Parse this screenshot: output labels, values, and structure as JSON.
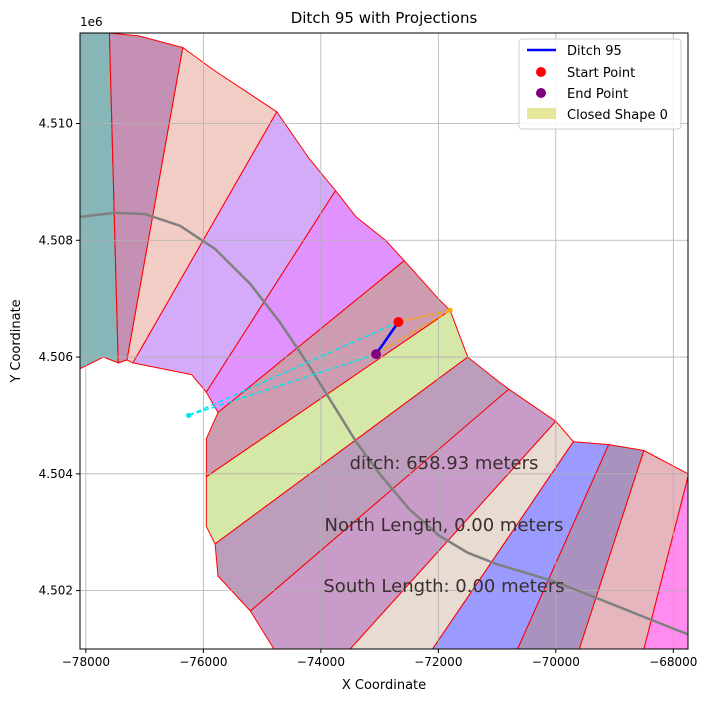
{
  "chart_data": {
    "type": "line",
    "title": "Ditch 95 with Projections",
    "xlabel": "X Coordinate",
    "ylabel": "Y Coordinate",
    "y_offset_label": "1e6",
    "xlim": [
      -78100,
      -67750
    ],
    "ylim": [
      4501.0,
      4511.55
    ],
    "y_scale_note": "y values in thousands of meters (x1e6 offset shown as 1e6 in millions: 4.510 = 4510000)",
    "grid": true,
    "legend_position": "top-right",
    "xticks": [
      -78000,
      -76000,
      -74000,
      -72000,
      -70000,
      -68000
    ],
    "xtick_labels": [
      "−78000",
      "−76000",
      "−74000",
      "−72000",
      "−70000",
      "−68000"
    ],
    "yticks": [
      4502,
      4504,
      4506,
      4508,
      4510
    ],
    "ytick_labels": [
      "4.502",
      "4.504",
      "4.506",
      "4.508",
      "4.510"
    ],
    "legend": [
      {
        "label": "Ditch 95",
        "kind": "line",
        "color": "#0000ff"
      },
      {
        "label": "Start Point",
        "kind": "point",
        "color": "#ff0000"
      },
      {
        "label": "End Point",
        "kind": "point",
        "color": "#800080"
      },
      {
        "label": "Closed Shape 0",
        "kind": "patch",
        "color": "#e3e38a"
      }
    ],
    "annotations": [
      {
        "text": "ditch: 658.93 meters",
        "x": -72500,
        "y": 4504.2
      },
      {
        "text": "North Length, 0.00 meters",
        "x": -72000,
        "y": 4503.15
      },
      {
        "text": "South Length: 0.00 meters",
        "x": -72000,
        "y": 4502.1
      }
    ],
    "ditch": {
      "name": "Ditch 95",
      "x": [
        -72680,
        -73060
      ],
      "y": [
        4506.6,
        4506.05
      ],
      "color": "#0000ff"
    },
    "start_point": {
      "x": -72680,
      "y": 4506.6,
      "color": "#ff0000"
    },
    "end_point": {
      "x": -73060,
      "y": 4506.05,
      "color": "#800080"
    },
    "projections": [
      {
        "color": "#ffa500",
        "x": [
          -72680,
          -71800
        ],
        "y": [
          4506.6,
          4506.8
        ]
      },
      {
        "color": "#ffa500",
        "x": [
          -73060,
          -71800
        ],
        "y": [
          4506.05,
          4506.8
        ]
      },
      {
        "color": "#00e5ee",
        "x": [
          -72680,
          -76250
        ],
        "y": [
          4506.6,
          4505.0
        ]
      },
      {
        "color": "#00e5ee",
        "x": [
          -73060,
          -76250
        ],
        "y": [
          4506.05,
          4505.0
        ]
      }
    ],
    "centerline": {
      "color": "#808080",
      "x": [
        -78100,
        -77500,
        -77000,
        -76400,
        -75800,
        -75200,
        -74700,
        -74200,
        -73800,
        -73400,
        -73000,
        -72500,
        -72000,
        -71500,
        -71000,
        -70500,
        -70000,
        -69500,
        -69000,
        -68500,
        -68000,
        -67750
      ],
      "y": [
        4508.4,
        4508.47,
        4508.45,
        4508.25,
        4507.85,
        4507.25,
        4506.6,
        4505.85,
        4505.2,
        4504.55,
        4504.0,
        4503.4,
        4502.95,
        4502.65,
        4502.45,
        4502.3,
        4502.15,
        4501.95,
        4501.75,
        4501.55,
        4501.35,
        4501.25
      ]
    },
    "bands": [
      {
        "color": "#5f9ea0",
        "opacity": 0.75,
        "points": [
          [
            -78100,
            4511.55
          ],
          [
            -77600,
            4511.55
          ],
          [
            -77450,
            4505.9
          ],
          [
            -77700,
            4506.0
          ],
          [
            -78100,
            4505.8
          ]
        ]
      },
      {
        "color": "#b06b9a",
        "opacity": 0.75,
        "points": [
          [
            -77600,
            4511.55
          ],
          [
            -77100,
            4511.5
          ],
          [
            -76350,
            4511.3
          ],
          [
            -77300,
            4505.95
          ],
          [
            -77450,
            4505.9
          ]
        ]
      },
      {
        "color": "#eebcb2",
        "opacity": 0.75,
        "points": [
          [
            -76350,
            4511.3
          ],
          [
            -75800,
            4510.9
          ],
          [
            -74750,
            4510.2
          ],
          [
            -77200,
            4505.9
          ],
          [
            -77300,
            4505.95
          ]
        ]
      },
      {
        "color": "#c58ff5",
        "opacity": 0.75,
        "points": [
          [
            -74750,
            4510.2
          ],
          [
            -74200,
            4509.4
          ],
          [
            -73750,
            4508.85
          ],
          [
            -75950,
            4505.4
          ],
          [
            -76200,
            4505.7
          ],
          [
            -77200,
            4505.9
          ]
        ]
      },
      {
        "color": "#d56dff",
        "opacity": 0.75,
        "points": [
          [
            -73750,
            4508.85
          ],
          [
            -73400,
            4508.4
          ],
          [
            -72900,
            4508.0
          ],
          [
            -72580,
            4507.65
          ],
          [
            -75750,
            4505.05
          ],
          [
            -75950,
            4505.4
          ]
        ]
      },
      {
        "color": "#bd7b96",
        "opacity": 0.75,
        "points": [
          [
            -72580,
            4507.65
          ],
          [
            -72000,
            4507.0
          ],
          [
            -71800,
            4506.8
          ],
          [
            -75950,
            4503.95
          ],
          [
            -75950,
            4504.6
          ],
          [
            -75750,
            4505.05
          ]
        ]
      },
      {
        "color": "#c7e08a",
        "opacity": 0.75,
        "points": [
          [
            -71800,
            4506.8
          ],
          [
            -71500,
            4506.0
          ],
          [
            -75800,
            4502.8
          ],
          [
            -75950,
            4503.1
          ],
          [
            -75950,
            4503.95
          ]
        ]
      },
      {
        "color": "#a57ea6",
        "opacity": 0.75,
        "points": [
          [
            -71500,
            4506.0
          ],
          [
            -71000,
            4505.6
          ],
          [
            -70800,
            4505.45
          ],
          [
            -75200,
            4501.65
          ],
          [
            -75750,
            4502.25
          ],
          [
            -75800,
            4502.8
          ]
        ]
      },
      {
        "color": "#b679b7",
        "opacity": 0.75,
        "points": [
          [
            -70800,
            4505.45
          ],
          [
            -70000,
            4504.9
          ],
          [
            -73500,
            4501.0
          ],
          [
            -74800,
            4501.0
          ],
          [
            -75200,
            4501.65
          ]
        ]
      },
      {
        "color": "#e0cfc2",
        "opacity": 0.75,
        "points": [
          [
            -70000,
            4504.9
          ],
          [
            -69700,
            4504.55
          ],
          [
            -72100,
            4501.0
          ],
          [
            -73500,
            4501.0
          ]
        ]
      },
      {
        "color": "#7878ff",
        "opacity": 0.75,
        "points": [
          [
            -69700,
            4504.55
          ],
          [
            -69100,
            4504.5
          ],
          [
            -70650,
            4501.0
          ],
          [
            -72100,
            4501.0
          ]
        ]
      },
      {
        "color": "#8e6ea8",
        "opacity": 0.75,
        "points": [
          [
            -69100,
            4504.5
          ],
          [
            -68500,
            4504.4
          ],
          [
            -69600,
            4501.0
          ],
          [
            -70650,
            4501.0
          ]
        ]
      },
      {
        "color": "#dc9ea8",
        "opacity": 0.75,
        "points": [
          [
            -68500,
            4504.4
          ],
          [
            -67750,
            4504.0
          ],
          [
            -67750,
            4503.95
          ],
          [
            -68500,
            4501.0
          ],
          [
            -69600,
            4501.0
          ]
        ]
      },
      {
        "color": "#ff66e8",
        "opacity": 0.75,
        "points": [
          [
            -67750,
            4503.95
          ],
          [
            -67750,
            4501.0
          ],
          [
            -68500,
            4501.0
          ]
        ]
      }
    ],
    "boundary_color": "#ff0000"
  }
}
